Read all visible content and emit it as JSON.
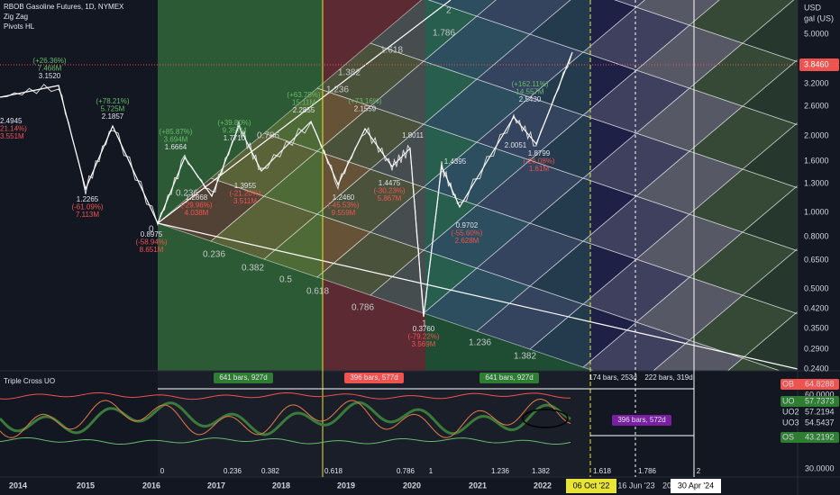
{
  "header": {
    "title": "RBOB Gasoline Futures, 1D, NYMEX",
    "indicators": [
      "Zig Zag",
      "Pivots HL"
    ]
  },
  "price_axis": {
    "unit": [
      "USD",
      "gal (US)"
    ],
    "labels": [
      "5.0000",
      "3.2000",
      "2.6000",
      "2.0000",
      "1.6000",
      "1.3000",
      "1.0000",
      "0.8000",
      "0.6500",
      "0.5000",
      "0.4200",
      "0.3500",
      "0.2900",
      "0.2400"
    ],
    "last_price": "3.8460"
  },
  "fib_labels": [
    "0",
    "0.236",
    "0.236",
    "0.382",
    "0.5",
    "0.618",
    "0.786",
    "1",
    "1.236",
    "1.382",
    "0.786",
    "1.236",
    "1.382",
    "1.618",
    "1.786",
    "2"
  ],
  "pivots": [
    [
      "2.4945",
      "21.14%)",
      "3.551M"
    ],
    [
      "(+26.36%)",
      "7.466M",
      "3.1520"
    ],
    [
      "(+78.21%)",
      "5.725M",
      "2.1857"
    ],
    [
      "1.2265",
      "(-61.09%)",
      "7.113M"
    ],
    [
      "0.8975",
      "(-58.94%)",
      "8.651M"
    ],
    [
      "(+85.87%)",
      "3.694M",
      "1.6664"
    ],
    [
      "1.2868",
      "(-29.96%)",
      "4.038M"
    ],
    [
      "(+39.80%)",
      "9.357M",
      "1.7710"
    ],
    [
      "1.3955",
      "(-21.20%)",
      "3.511M"
    ],
    [
      "(+63.78%)",
      "15.11M",
      "2.2855"
    ],
    [
      "(+73.16%)",
      "2.1559"
    ],
    [
      "1.2460",
      "(-45.53%)",
      "9.559M"
    ],
    [
      "1.8011"
    ],
    [
      "1.4475",
      "(-30.23%)",
      "5.867M"
    ],
    [
      "0.3760",
      "(-79.22%)",
      "3.569M"
    ],
    [
      "1.4395"
    ],
    [
      "0.9702",
      "(-55.60%)",
      "2.628M"
    ],
    [
      "2.0051"
    ],
    [
      "(+162.11%)",
      "14.557M",
      "2.5430"
    ],
    [
      "1.8799",
      "(-26.08%)",
      "1.61M"
    ]
  ],
  "indicator": {
    "title": "Triple Cross UO",
    "range_labels": [
      "641 bars, 927d",
      "396 bars, 577d",
      "641 bars, 927d",
      "174 bars, 253d",
      "222 bars, 319d",
      "396 bars, 572d"
    ],
    "fib_labels": [
      "0",
      "0.236",
      "0.382",
      "0.618",
      "0.786",
      "1",
      "1.236",
      "1.382",
      "1.618",
      "1.786",
      "2"
    ],
    "axis": [
      [
        "OB",
        "64.8288"
      ],
      [
        "",
        "60.0000"
      ],
      [
        "UO",
        "57.7373"
      ],
      [
        "UO2",
        "57.2194"
      ],
      [
        "UO3",
        "54.5437"
      ],
      [
        "OS",
        "43.2192"
      ],
      [
        "",
        "30.0000"
      ]
    ]
  },
  "time_axis": {
    "labels": [
      "2014",
      "2015",
      "2016",
      "2017",
      "2018",
      "2019",
      "2020",
      "2021",
      "2022"
    ],
    "markers": [
      "06 Oct '22",
      "16 Jun '23",
      "20",
      "30 Apr '24"
    ]
  }
}
